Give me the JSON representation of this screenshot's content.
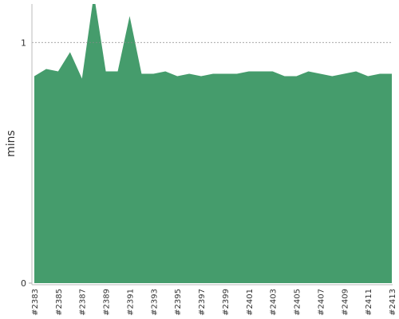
{
  "chart_data": {
    "type": "area",
    "ylabel": "mins",
    "categories": [
      "#2383",
      null,
      "#2385",
      null,
      "#2387",
      null,
      "#2389",
      null,
      "#2391",
      null,
      "#2393",
      null,
      "#2395",
      null,
      "#2397",
      null,
      "#2399",
      null,
      "#2401",
      null,
      "#2403",
      null,
      "#2405",
      null,
      "#2407",
      null,
      "#2409",
      null,
      "#2411",
      null,
      "#2413"
    ],
    "values": [
      0.86,
      0.89,
      0.88,
      0.96,
      0.85,
      1.2,
      0.88,
      0.88,
      1.11,
      0.87,
      0.87,
      0.88,
      0.86,
      0.87,
      0.86,
      0.87,
      0.87,
      0.87,
      0.88,
      0.88,
      0.88,
      0.86,
      0.86,
      0.88,
      0.87,
      0.86,
      0.87,
      0.88,
      0.86,
      0.87,
      0.87
    ],
    "color": "#459c6c",
    "ylim": [
      0,
      1.16
    ],
    "yticks": [
      0,
      1
    ],
    "grid": true
  }
}
